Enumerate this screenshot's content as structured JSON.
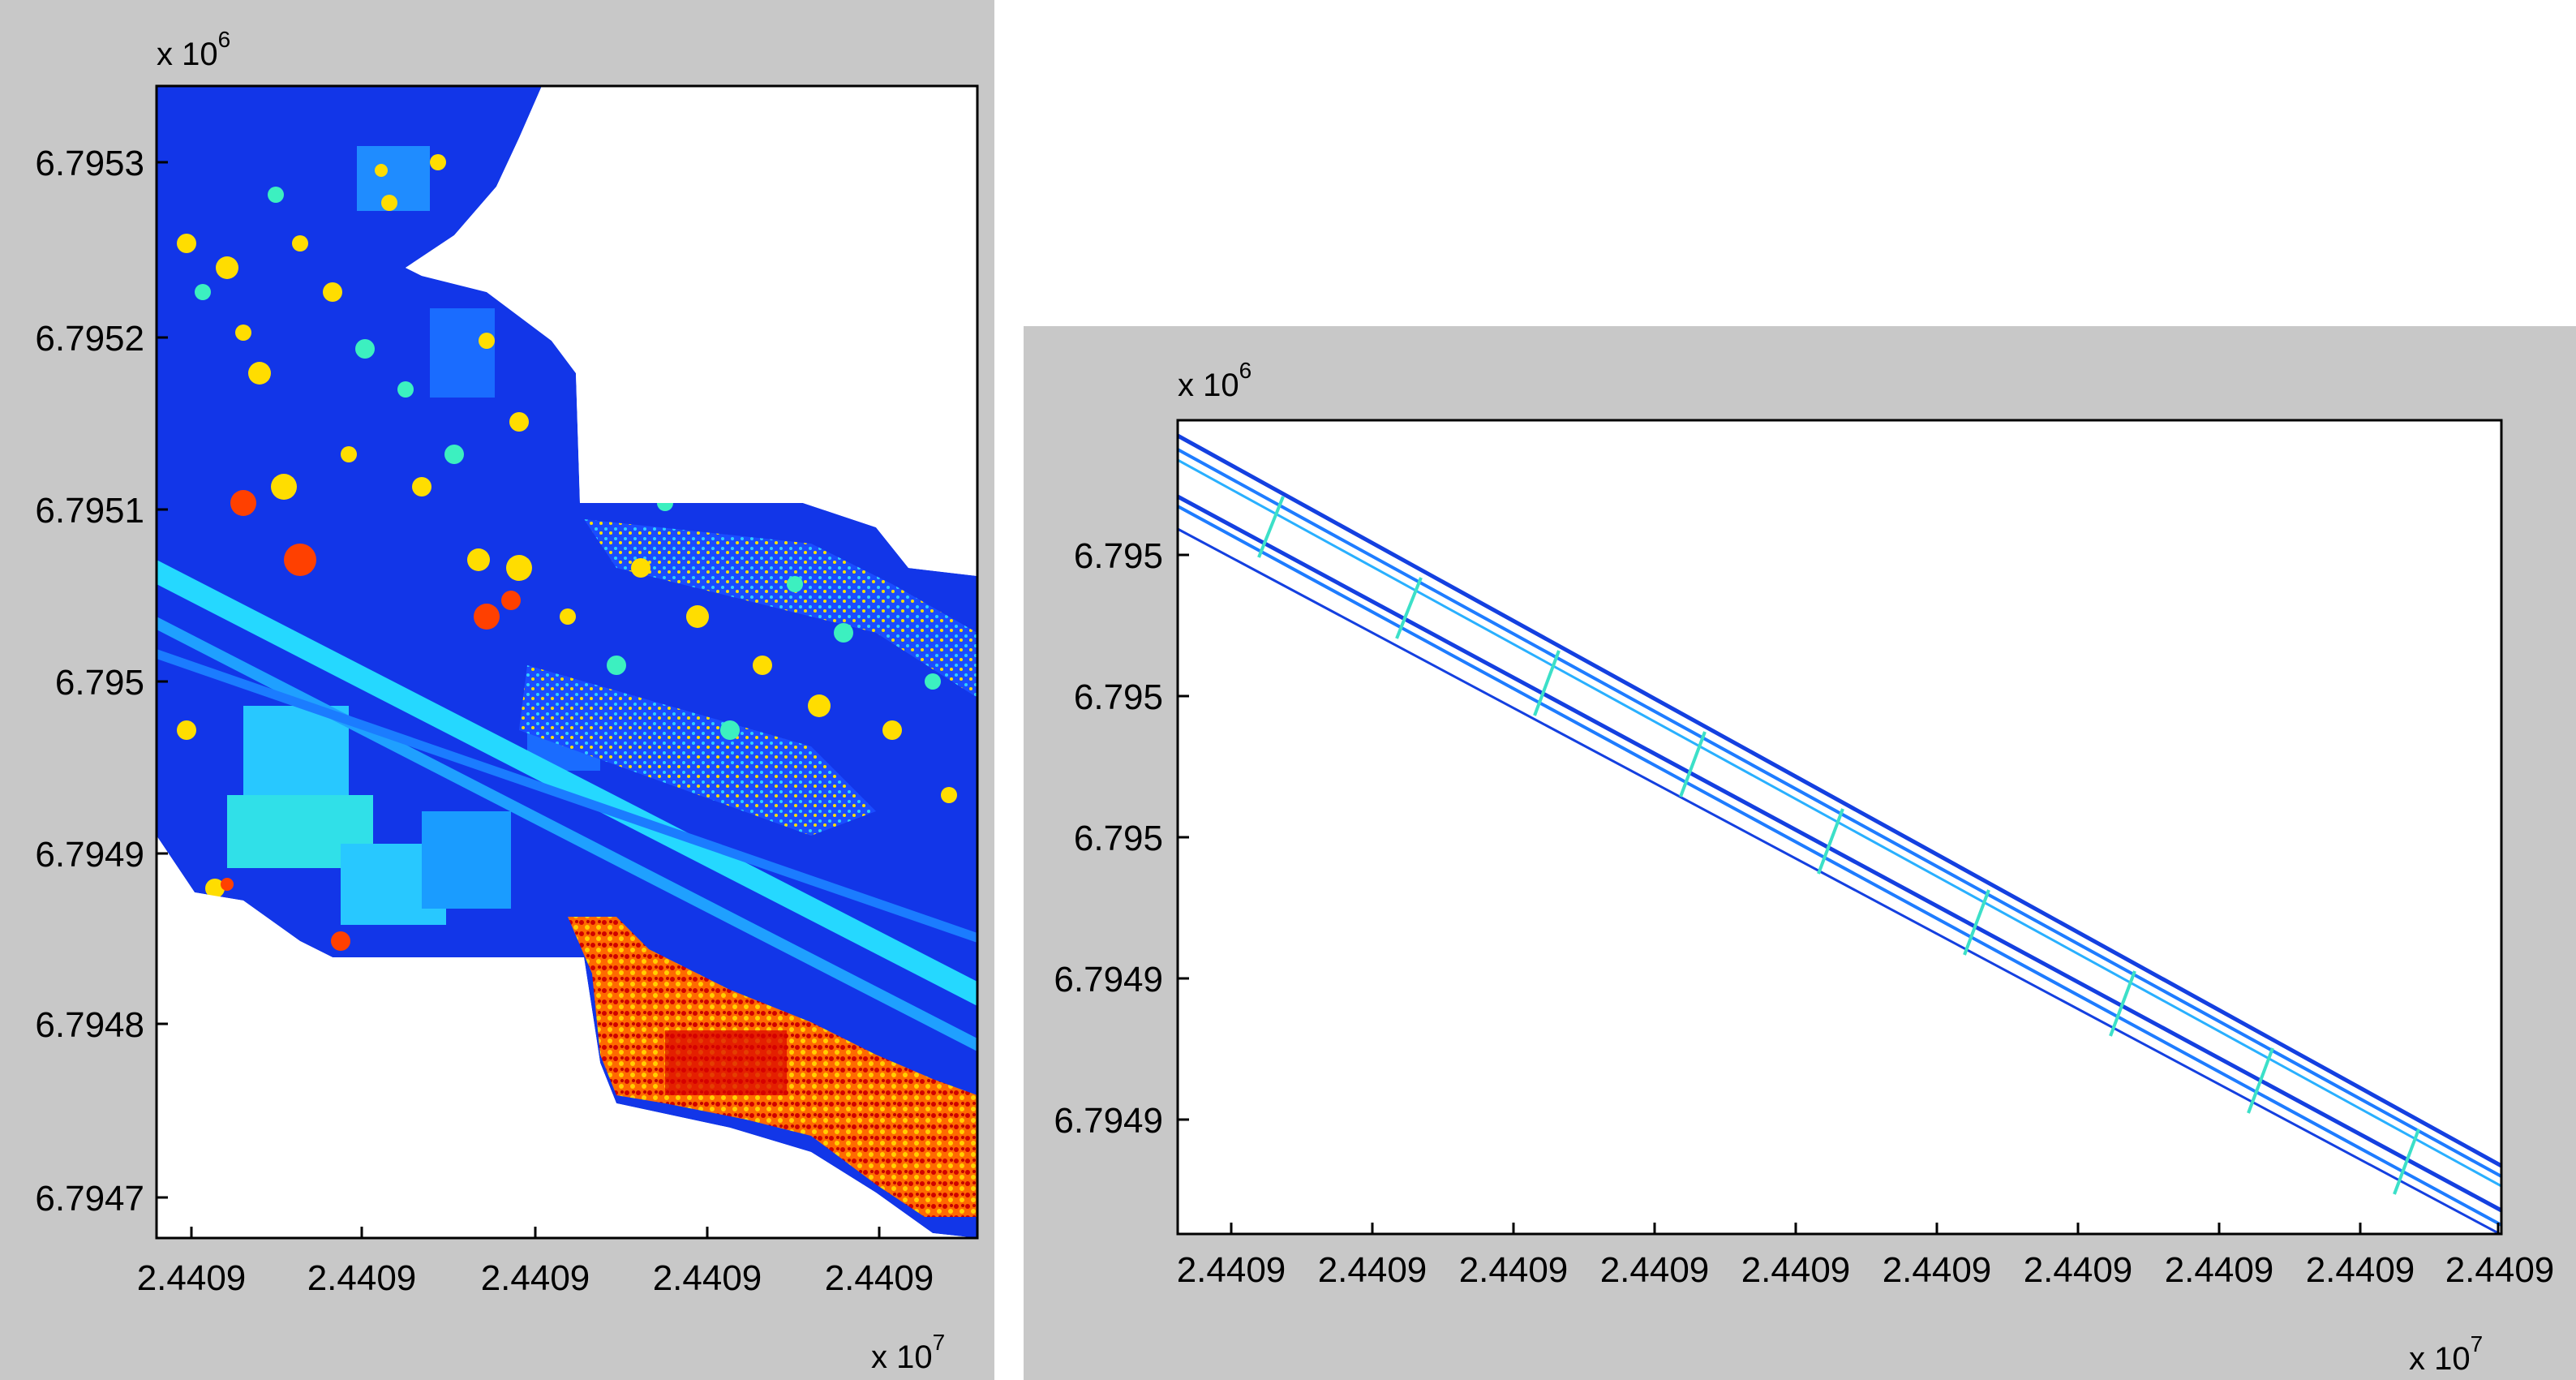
{
  "chart_data": [
    {
      "type": "scatter",
      "id": "left",
      "title": "",
      "x_tick_labels": [
        "2.4409",
        "2.4409",
        "2.4409",
        "2.4409",
        "2.4409"
      ],
      "y_tick_labels": [
        "6.7953",
        "6.7952",
        "6.7951",
        "6.795",
        "6.7949",
        "6.7948",
        "6.7947"
      ],
      "x_multiplier": {
        "base": "x 10",
        "exp": "7"
      },
      "y_multiplier": {
        "base": "x 10",
        "exp": "6"
      },
      "colormap": "jet",
      "grid": false
    },
    {
      "type": "scatter",
      "id": "right",
      "title": "",
      "x_tick_labels": [
        "2.4409",
        "2.4409",
        "2.4409",
        "2.4409",
        "2.4409",
        "2.4409",
        "2.4409",
        "2.4409",
        "2.4409",
        "2.4409"
      ],
      "y_tick_labels": [
        "6.795",
        "6.795",
        "6.795",
        "6.7949",
        "6.7949"
      ],
      "x_multiplier": {
        "base": "x 10",
        "exp": "7"
      },
      "y_multiplier": {
        "base": "x 10",
        "exp": "6"
      },
      "colormap": "jet",
      "grid": false
    }
  ]
}
